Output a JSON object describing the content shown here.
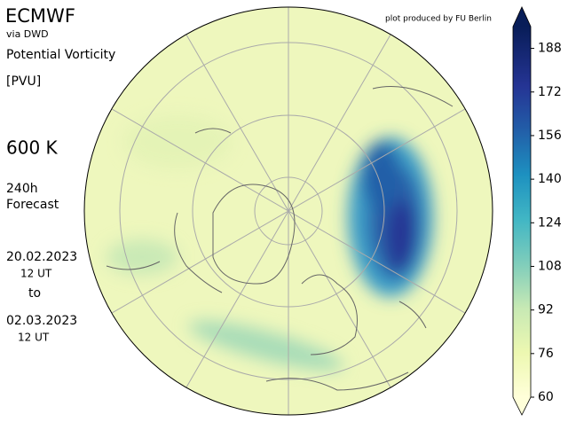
{
  "header": {
    "title": "ECMWF",
    "source": "via DWD",
    "variable": "Potential Vorticity",
    "unit": "[PVU]",
    "level": "600 K",
    "forecast_hours": "240h",
    "forecast_label": "Forecast",
    "init_date": "20.02.2023",
    "init_time": "12 UT",
    "to": "to",
    "valid_date": "02.03.2023",
    "valid_time": "12 UT",
    "credit": "plot produced by FU Berlin"
  },
  "colorbar": {
    "range": [
      60,
      196
    ],
    "ticks": [
      60,
      76,
      92,
      108,
      124,
      140,
      156,
      172,
      188
    ]
  }
}
